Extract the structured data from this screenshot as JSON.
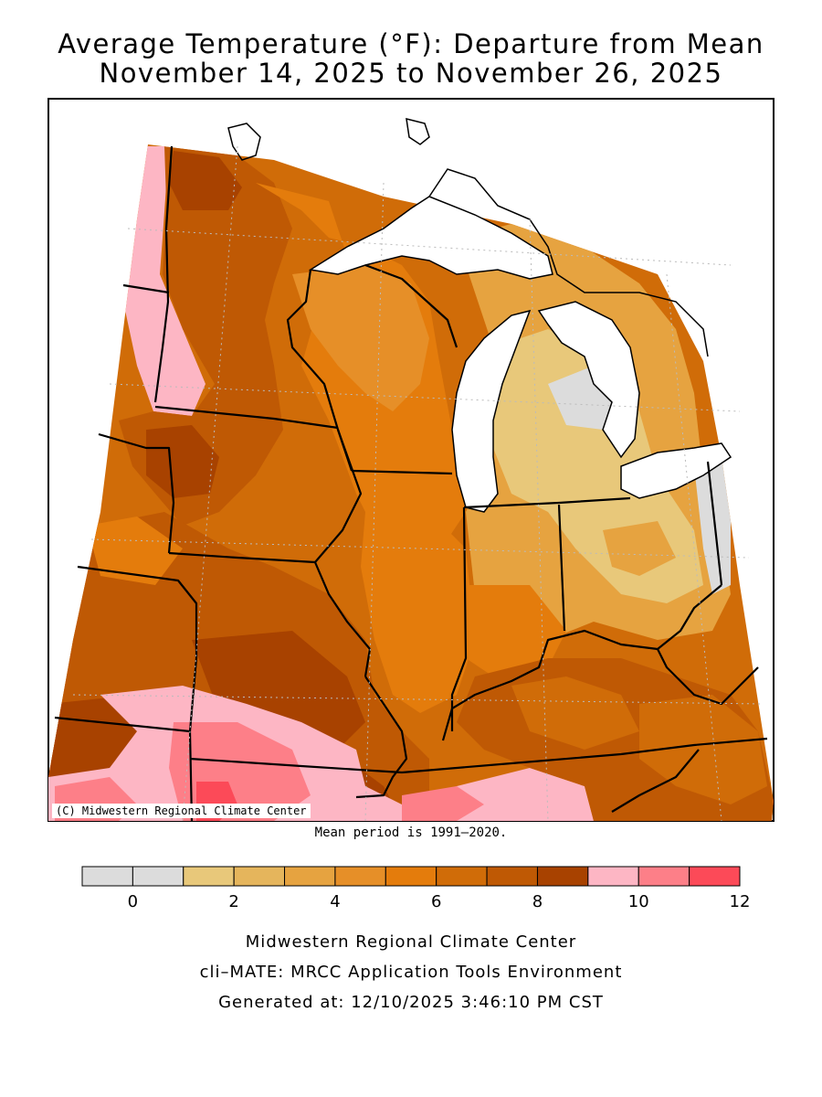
{
  "title": {
    "line1": "Average Temperature (°F): Departure from Mean",
    "line2": "November 14, 2025 to November 26, 2025"
  },
  "map": {
    "copyright": "(C) Midwestern Regional Climate Center",
    "mean_note": "Mean period is 1991–2020."
  },
  "legend": {
    "min": -1,
    "max": 12,
    "tick_labels": [
      "0",
      "2",
      "4",
      "6",
      "8",
      "10",
      "12"
    ],
    "tick_values": [
      0,
      2,
      4,
      6,
      8,
      10,
      12
    ],
    "bins": [
      {
        "lo": -1,
        "hi": 0,
        "color": "#dcdcdc"
      },
      {
        "lo": 0,
        "hi": 1,
        "color": "#dcdcdc"
      },
      {
        "lo": 1,
        "hi": 2,
        "color": "#e8c87a"
      },
      {
        "lo": 2,
        "hi": 3,
        "color": "#e5b55c"
      },
      {
        "lo": 3,
        "hi": 4,
        "color": "#e6a340"
      },
      {
        "lo": 4,
        "hi": 5,
        "color": "#e68f28"
      },
      {
        "lo": 5,
        "hi": 6,
        "color": "#e47c0c"
      },
      {
        "lo": 6,
        "hi": 7,
        "color": "#d06c08"
      },
      {
        "lo": 7,
        "hi": 8,
        "color": "#bf5904"
      },
      {
        "lo": 8,
        "hi": 9,
        "color": "#a84200"
      },
      {
        "lo": 9,
        "hi": 10,
        "color": "#fdb6c4"
      },
      {
        "lo": 10,
        "hi": 11,
        "color": "#fd7f88"
      },
      {
        "lo": 11,
        "hi": 12,
        "color": "#fc4a58"
      }
    ]
  },
  "footer": {
    "line1": "Midwestern Regional Climate Center",
    "line2": "cli–MATE: MRCC Application Tools Environment",
    "line3": "Generated at: 12/10/2025 3:46:10 PM CST"
  }
}
